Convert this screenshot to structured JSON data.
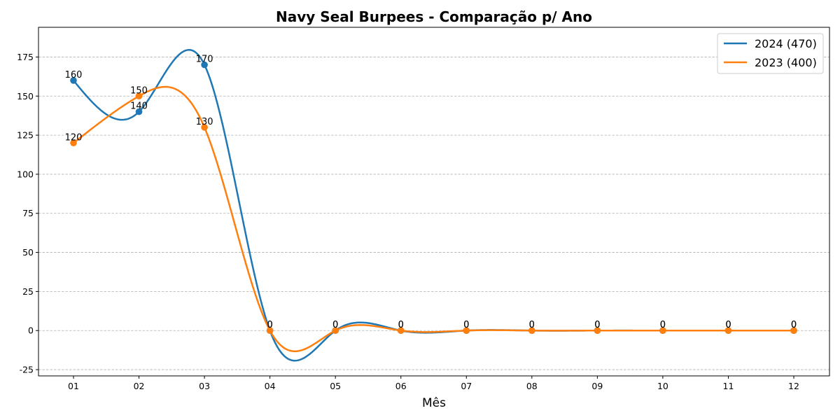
{
  "chart_data": {
    "type": "line",
    "title": "Navy Seal Burpees - Comparação p/ Ano",
    "xlabel": "Mês",
    "ylabel": "",
    "categories": [
      "01",
      "02",
      "03",
      "04",
      "05",
      "06",
      "07",
      "08",
      "09",
      "10",
      "11",
      "12"
    ],
    "ylim": [
      -29,
      194
    ],
    "yticks": [
      -25,
      0,
      25,
      50,
      75,
      100,
      125,
      150,
      175
    ],
    "grid": "y-dashed",
    "legend_placement": "top-right",
    "smoothed": true,
    "series": [
      {
        "name": "2024 (470)",
        "color": "#1f77b4",
        "values": [
          160,
          140,
          170,
          0,
          0,
          0,
          0,
          0,
          0,
          0,
          0,
          0
        ]
      },
      {
        "name": "2023 (400)",
        "color": "#ff7f0e",
        "values": [
          120,
          150,
          130,
          0,
          0,
          0,
          0,
          0,
          0,
          0,
          0,
          0
        ]
      }
    ]
  }
}
